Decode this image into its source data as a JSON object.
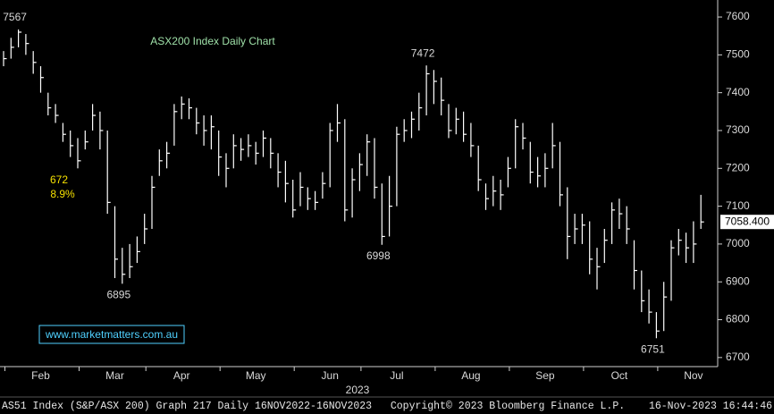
{
  "chart_data": {
    "type": "hlc",
    "title": "ASX200 Index Daily Chart",
    "color": "#ffffff",
    "x_label": "2023",
    "categories": [
      null,
      null,
      null,
      null,
      null,
      "Feb",
      null,
      null,
      null,
      null,
      null,
      null,
      null,
      null,
      null,
      "Mar",
      null,
      null,
      null,
      null,
      null,
      null,
      null,
      null,
      "Apr",
      null,
      null,
      null,
      null,
      null,
      null,
      null,
      null,
      null,
      "May",
      null,
      null,
      null,
      null,
      null,
      null,
      null,
      null,
      null,
      "Jun",
      null,
      null,
      null,
      null,
      null,
      null,
      null,
      null,
      "Jul",
      null,
      null,
      null,
      null,
      null,
      null,
      null,
      null,
      null,
      "Aug",
      null,
      null,
      null,
      null,
      null,
      null,
      null,
      null,
      null,
      "Sep",
      null,
      null,
      null,
      null,
      null,
      null,
      null,
      null,
      null,
      "Oct",
      null,
      null,
      null,
      null,
      null,
      null,
      null,
      null,
      null,
      "Nov",
      null
    ],
    "high": [
      7510,
      7545,
      7567,
      7555,
      7510,
      7470,
      7400,
      7370,
      7320,
      7300,
      7280,
      7300,
      7370,
      7350,
      7300,
      7100,
      6990,
      7000,
      7020,
      7080,
      7180,
      7250,
      7270,
      7370,
      7390,
      7385,
      7360,
      7340,
      7340,
      7300,
      7240,
      7290,
      7280,
      7290,
      7270,
      7300,
      7280,
      7240,
      7220,
      7170,
      7190,
      7150,
      7140,
      7190,
      7320,
      7370,
      7330,
      7200,
      7240,
      7290,
      7280,
      7160,
      7180,
      7310,
      7330,
      7350,
      7400,
      7472,
      7460,
      7440,
      7370,
      7360,
      7350,
      7320,
      7260,
      7160,
      7180,
      7170,
      7230,
      7330,
      7320,
      7270,
      7230,
      7240,
      7320,
      7270,
      7150,
      7080,
      7080,
      7060,
      6990,
      7040,
      7110,
      7120,
      7100,
      7010,
      6930,
      6880,
      6820,
      6900,
      7010,
      7040,
      7030,
      7060,
      7130
    ],
    "low": [
      7470,
      7490,
      7520,
      7500,
      7450,
      7400,
      7340,
      7320,
      7270,
      7230,
      7200,
      7250,
      7300,
      7250,
      7080,
      6910,
      6895,
      6910,
      6950,
      7000,
      7040,
      7180,
      7200,
      7260,
      7330,
      7330,
      7290,
      7260,
      7250,
      7180,
      7150,
      7200,
      7220,
      7230,
      7210,
      7230,
      7200,
      7150,
      7110,
      7070,
      7100,
      7090,
      7090,
      7120,
      7150,
      7270,
      7060,
      7070,
      7140,
      7180,
      7120,
      6998,
      7020,
      7100,
      7270,
      7280,
      7300,
      7340,
      7370,
      7340,
      7280,
      7290,
      7270,
      7230,
      7140,
      7090,
      7100,
      7090,
      7150,
      7200,
      7250,
      7160,
      7150,
      7150,
      7200,
      7100,
      6960,
      7000,
      7000,
      6920,
      6880,
      6950,
      7000,
      7040,
      7000,
      6880,
      6820,
      6790,
      6751,
      6770,
      6850,
      6970,
      6950,
      6950,
      7040
    ],
    "close": [
      7490,
      7520,
      7560,
      7530,
      7480,
      7440,
      7360,
      7340,
      7290,
      7260,
      7220,
      7270,
      7340,
      7300,
      7110,
      6960,
      6920,
      6940,
      6980,
      7040,
      7150,
      7220,
      7240,
      7350,
      7370,
      7360,
      7320,
      7300,
      7310,
      7230,
      7200,
      7260,
      7250,
      7260,
      7240,
      7280,
      7240,
      7190,
      7160,
      7090,
      7150,
      7120,
      7110,
      7160,
      7300,
      7320,
      7090,
      7170,
      7210,
      7270,
      7150,
      7020,
      7100,
      7290,
      7300,
      7330,
      7360,
      7450,
      7430,
      7380,
      7300,
      7330,
      7290,
      7260,
      7170,
      7120,
      7140,
      7130,
      7200,
      7310,
      7280,
      7190,
      7180,
      7200,
      7260,
      7130,
      7020,
      7040,
      7050,
      6960,
      6940,
      7010,
      7090,
      7080,
      7040,
      6930,
      6850,
      6820,
      6770,
      6860,
      6990,
      7010,
      6990,
      7000,
      7058.4
    ],
    "ylim": [
      6676,
      7645
    ],
    "yticks": [
      6700,
      6800,
      6900,
      7000,
      7100,
      7200,
      7300,
      7400,
      7500,
      7600
    ],
    "last_value": {
      "value": 7058.4,
      "label": "7058.400"
    },
    "annotations": [
      {
        "value": 7567,
        "label": "7567"
      },
      {
        "value": 7472,
        "label": "7472"
      },
      {
        "value": 6895,
        "label": "6895"
      },
      {
        "value": 6998,
        "label": "6998"
      },
      {
        "value": 6751,
        "label": "6751"
      }
    ],
    "notes": [
      "672",
      "8.9%"
    ],
    "website": "www.marketmatters.com.au",
    "footer": {
      "left": "AS51 Index (S&P/ASX 200) Graph 217  Daily 16NOV2022-16NOV2023",
      "center": "Copyright© 2023 Bloomberg Finance L.P.",
      "right": "16-Nov-2023 16:44:46"
    }
  }
}
